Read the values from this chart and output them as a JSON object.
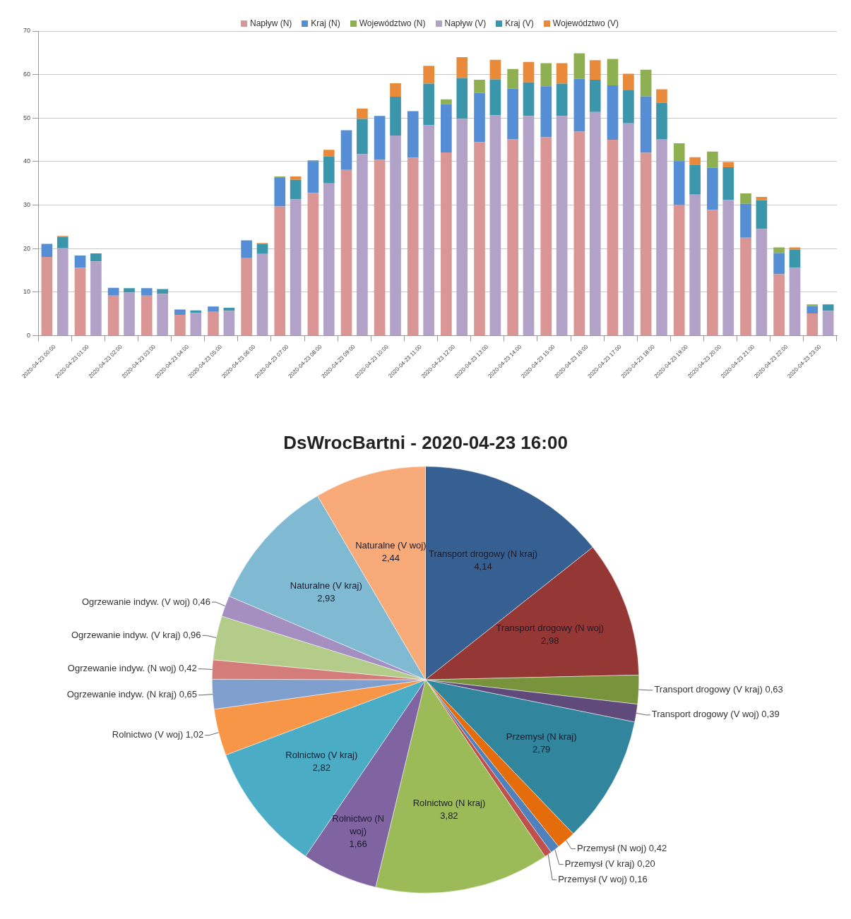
{
  "chart_data": [
    {
      "type": "bar",
      "stacked": true,
      "categories": [
        "2020-04-23 00:00",
        "2020-04-23 01:00",
        "2020-04-23 02:00",
        "2020-04-23 03:00",
        "2020-04-23 04:00",
        "2020-04-23 05:00",
        "2020-04-23 06:00",
        "2020-04-23 07:00",
        "2020-04-23 08:00",
        "2020-04-23 09:00",
        "2020-04-23 10:00",
        "2020-04-23 11:00",
        "2020-04-23 12:00",
        "2020-04-23 13:00",
        "2020-04-23 14:00",
        "2020-04-23 15:00",
        "2020-04-23 16:00",
        "2020-04-23 17:00",
        "2020-04-23 18:00",
        "2020-04-23 19:00",
        "2020-04-23 20:00",
        "2020-04-23 21:00",
        "2020-04-23 22:00",
        "2020-04-23 23:00"
      ],
      "series": [
        {
          "name": "Napływ (N)",
          "color": "#d99694",
          "values": [
            18.1,
            15.6,
            9.2,
            9.2,
            4.8,
            5.5,
            17.8,
            29.7,
            32.8,
            38.1,
            40.4,
            40.9,
            42.1,
            44.5,
            45.1,
            45.6,
            46.9,
            45.0,
            42.0,
            30.0,
            28.9,
            22.5,
            14.1,
            5.1
          ]
        },
        {
          "name": "Kraj (N)",
          "color": "#558ed5",
          "values": [
            3.0,
            2.8,
            1.8,
            1.7,
            1.2,
            1.2,
            4.1,
            6.7,
            7.3,
            9.1,
            10.1,
            10.7,
            11.1,
            11.3,
            11.7,
            11.7,
            12.1,
            12.5,
            13.0,
            10.1,
            9.7,
            7.8,
            4.9,
            1.7
          ]
        },
        {
          "name": "Województwo (N)",
          "color": "#8eb050",
          "values": [
            0,
            0,
            0,
            0,
            0,
            0,
            0,
            0.2,
            0.2,
            0,
            0,
            0,
            1.1,
            3.0,
            4.5,
            5.3,
            5.9,
            6.1,
            6.1,
            4.1,
            3.7,
            2.4,
            1.3,
            0.4
          ]
        }
      ],
      "ylim": [
        0,
        70
      ],
      "yticks": [
        0,
        10,
        20,
        30,
        40,
        50,
        60,
        70
      ],
      "grid": "y",
      "tick_labels": "x",
      "legend": "top"
    },
    {
      "type": "bar",
      "stacked": true,
      "categories": [
        "2020-04-23 00:00",
        "2020-04-23 01:00",
        "2020-04-23 02:00",
        "2020-04-23 03:00",
        "2020-04-23 04:00",
        "2020-04-23 05:00",
        "2020-04-23 06:00",
        "2020-04-23 07:00",
        "2020-04-23 08:00",
        "2020-04-23 09:00",
        "2020-04-23 10:00",
        "2020-04-23 11:00",
        "2020-04-23 12:00",
        "2020-04-23 13:00",
        "2020-04-23 14:00",
        "2020-04-23 15:00",
        "2020-04-23 16:00",
        "2020-04-23 17:00",
        "2020-04-23 18:00",
        "2020-04-23 19:00",
        "2020-04-23 20:00",
        "2020-04-23 21:00",
        "2020-04-23 22:00",
        "2020-04-23 23:00"
      ],
      "series": [
        {
          "name": "Napływ (V)",
          "color": "#b3a2c7",
          "values": [
            20.1,
            17.1,
            9.9,
            9.6,
            5.2,
            5.7,
            18.8,
            31.3,
            35.0,
            41.7,
            46.0,
            48.4,
            49.8,
            50.6,
            50.5,
            50.5,
            51.4,
            48.8,
            45.2,
            32.4,
            31.2,
            24.5,
            15.6,
            5.7
          ]
        },
        {
          "name": "Kraj (V)",
          "color": "#3c96ab",
          "values": [
            2.6,
            1.8,
            1.0,
            1.1,
            0.6,
            0.7,
            2.3,
            4.5,
            6.2,
            8.1,
            8.9,
            9.5,
            9.4,
            8.3,
            7.7,
            7.4,
            7.4,
            7.7,
            8.3,
            6.8,
            7.5,
            6.6,
            4.2,
            1.5
          ]
        },
        {
          "name": "Województwo (V)",
          "color": "#e88a3a",
          "values": [
            0.2,
            0,
            0,
            0,
            0,
            0,
            0.2,
            0.8,
            1.5,
            2.4,
            3.1,
            4.1,
            4.8,
            4.5,
            4.7,
            4.7,
            4.5,
            3.7,
            3.1,
            1.8,
            1.2,
            0.8,
            0.5,
            0
          ]
        }
      ],
      "ylim": [
        0,
        70
      ],
      "yticks": [
        0,
        10,
        20,
        30,
        40,
        50,
        60,
        70
      ],
      "tick_labels": "y",
      "legend": "top"
    },
    {
      "type": "pie",
      "title": "DsWrocBartni - 2020-04-23 16:00",
      "categories": [
        "Transport drogowy (N kraj)",
        "Transport drogowy (N woj)",
        "Transport drogowy (V kraj)",
        "Transport drogowy (V woj)",
        "Przemysł (N kraj)",
        "Przemysł (N woj)",
        "Przemysł (V kraj)",
        "Przemysł (V woj)",
        "Rolnictwo (N kraj)",
        "Rolnictwo (N woj)",
        "Rolnictwo (V kraj)",
        "Rolnictwo (V woj)",
        "Ogrzewanie indyw. (N kraj)",
        "Ogrzewanie indyw. (N woj)",
        "Ogrzewanie indyw. (V kraj)",
        "Ogrzewanie indyw. (V woj)",
        "Naturalne (V kraj)",
        "Naturalne (V woj)"
      ],
      "values": [
        4.14,
        2.98,
        0.63,
        0.39,
        2.79,
        0.42,
        0.2,
        0.16,
        3.82,
        1.66,
        2.82,
        1.02,
        0.65,
        0.42,
        0.96,
        0.46,
        2.93,
        2.44
      ],
      "value_labels": [
        "4,14",
        "2,98",
        "0,63",
        "0,39",
        "2,79",
        "0,42",
        "0,20",
        "0,16",
        "3,82",
        "1,66",
        "2,82",
        "1,02",
        "0,65",
        "0,42",
        "0,96",
        "0,46",
        "2,93",
        "2,44"
      ],
      "colors": [
        "#376092",
        "#953735",
        "#77933c",
        "#604a7b",
        "#31859c",
        "#e46c0a",
        "#4f81bd",
        "#c0504d",
        "#9bbb59",
        "#8064a2",
        "#4bacc6",
        "#f79646",
        "#7f9fcf",
        "#d47c7a",
        "#b3cc8a",
        "#a58fc0",
        "#7fbad2",
        "#f8aa78"
      ]
    }
  ]
}
